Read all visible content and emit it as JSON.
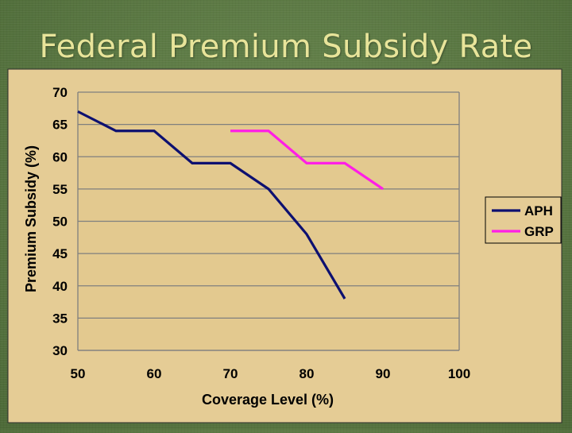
{
  "slide": {
    "title": "Federal Premium Subsidy Rate"
  },
  "colors": {
    "chart_background": "#e5cc95",
    "plot_background": "#e3c98f",
    "gridline": "#7f7f7f",
    "legend_background": "#e5cc95",
    "aph": "#0d1070",
    "grp": "#ff1ee6"
  },
  "chart_data": {
    "type": "line",
    "title": "",
    "xlabel": "Coverage Level (%)",
    "ylabel": "Premium Subsidy (%)",
    "xlim": [
      50,
      100
    ],
    "ylim": [
      30,
      70
    ],
    "xticks": [
      50,
      60,
      70,
      80,
      90,
      100
    ],
    "yticks": [
      30,
      35,
      40,
      45,
      50,
      55,
      60,
      65,
      70
    ],
    "grid": "horizontal",
    "legend_position": "right",
    "series": [
      {
        "name": "APH",
        "x": [
          50,
          55,
          60,
          65,
          70,
          75,
          80,
          85
        ],
        "y": [
          67,
          64,
          64,
          59,
          59,
          55,
          48,
          38
        ]
      },
      {
        "name": "GRP",
        "x": [
          70,
          75,
          80,
          85,
          90
        ],
        "y": [
          64,
          64,
          59,
          59,
          55
        ]
      }
    ]
  }
}
